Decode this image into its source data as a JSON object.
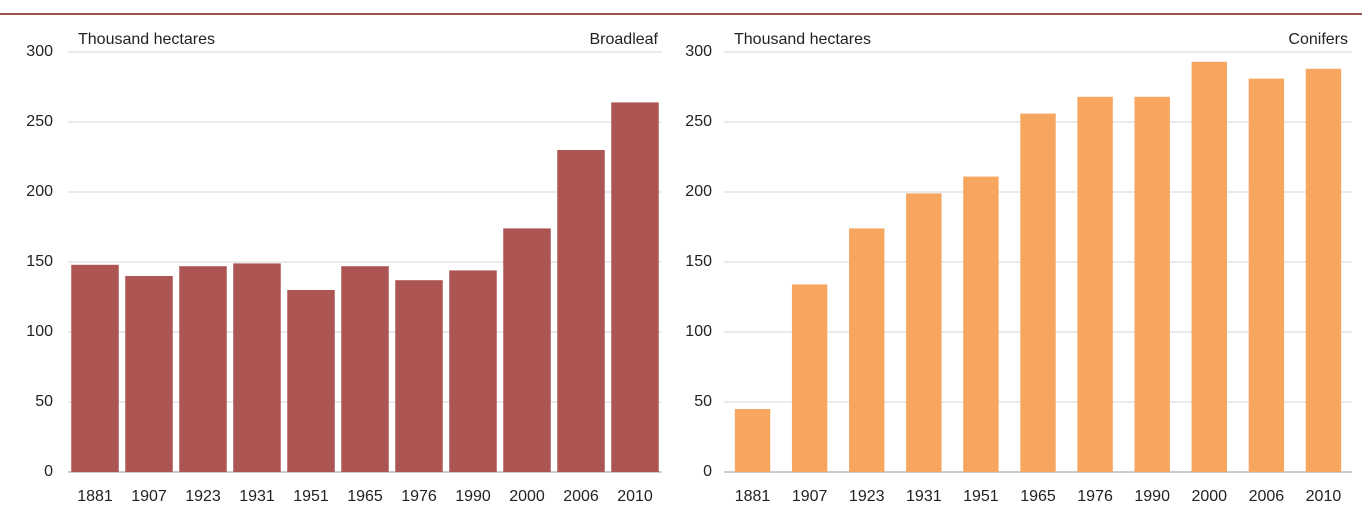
{
  "chart_data": [
    {
      "type": "bar",
      "y_label": "Thousand hectares",
      "categories": [
        "1881",
        "1907",
        "1923",
        "1931",
        "1951",
        "1965",
        "1976",
        "1990",
        "2000",
        "2006",
        "2010"
      ],
      "series": [
        {
          "name": "Broadleaf",
          "color": "#ad5553",
          "values": [
            148,
            140,
            147,
            149,
            130,
            147,
            137,
            144,
            174,
            230,
            264
          ]
        }
      ],
      "ylim": [
        0,
        300
      ],
      "yticks": [
        0,
        50,
        100,
        150,
        200,
        250,
        300
      ],
      "grid": true
    },
    {
      "type": "bar",
      "y_label": "Thousand hectares",
      "categories": [
        "1881",
        "1907",
        "1923",
        "1931",
        "1951",
        "1965",
        "1976",
        "1990",
        "2000",
        "2006",
        "2010"
      ],
      "series": [
        {
          "name": "Conifers",
          "color": "#f7a660",
          "values": [
            45,
            134,
            174,
            199,
            211,
            256,
            268,
            268,
            293,
            281,
            288
          ]
        }
      ],
      "ylim": [
        0,
        300
      ],
      "yticks": [
        0,
        50,
        100,
        150,
        200,
        250,
        300
      ],
      "grid": true
    }
  ]
}
